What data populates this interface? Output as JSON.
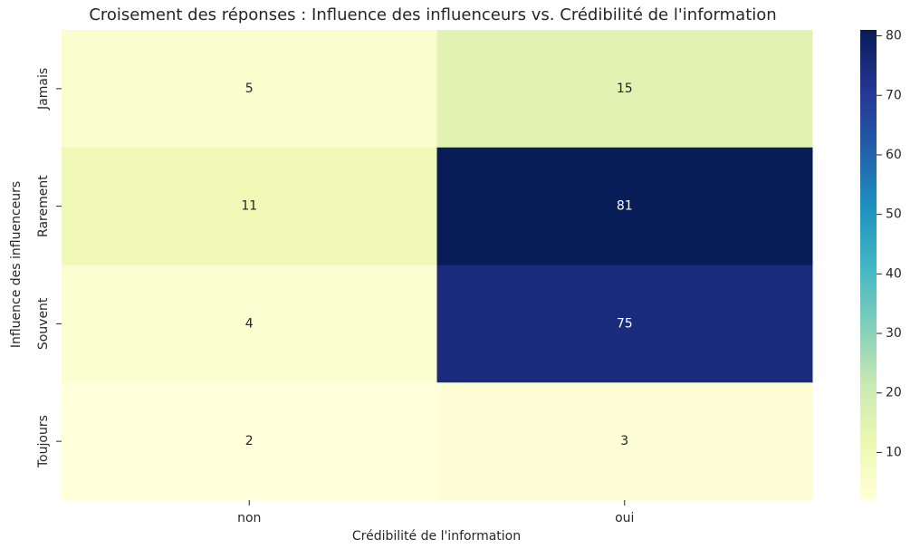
{
  "chart_data": {
    "type": "heatmap",
    "title": "Croisement des réponses : Influence des influenceurs vs. Crédibilité de l'information",
    "xlabel": "Crédibilité de l'information",
    "ylabel": "Influence des influenceurs",
    "x_categories": [
      "non",
      "oui"
    ],
    "y_categories": [
      "Jamais",
      "Rarement",
      "Souvent",
      "Toujours"
    ],
    "values": [
      [
        5,
        15
      ],
      [
        11,
        81
      ],
      [
        4,
        75
      ],
      [
        2,
        3
      ]
    ],
    "colormap": [
      "#ffffd9",
      "#edf8b1",
      "#c7e9b4",
      "#7fcdbb",
      "#41b6c4",
      "#1d91c0",
      "#225ea8",
      "#253494",
      "#081d58"
    ],
    "zlim": [
      2,
      81
    ],
    "zticks": [
      10,
      20,
      30,
      40,
      50,
      60,
      70,
      80
    ]
  }
}
